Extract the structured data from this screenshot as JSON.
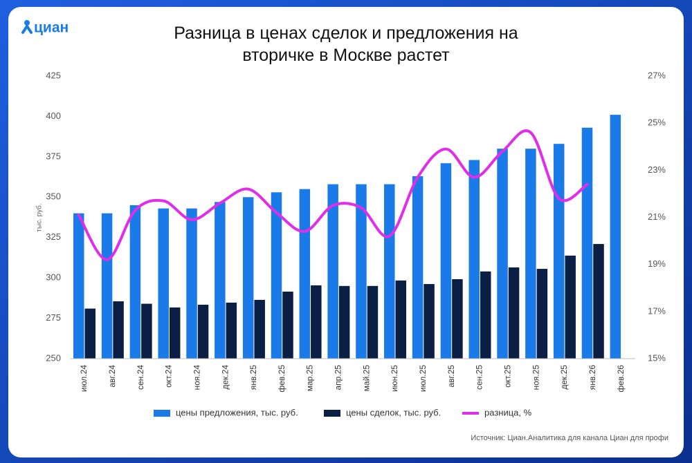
{
  "brand": "циан",
  "chart_data": {
    "type": "bar",
    "title": "Разница в ценах сделок и предложения на вторичке в Москве растет",
    "ylabel": "тыс. руб.",
    "source": "Источник: Циан.Аналитика для канала Циан для профи",
    "categories": [
      "июл.24",
      "авг.24",
      "сен.24",
      "окт.24",
      "ноя.24",
      "дек.24",
      "янв.25",
      "фев.25",
      "мар.25",
      "апр.25",
      "май.25",
      "июн.25",
      "июл.25",
      "авг.25",
      "сен.25",
      "окт.25",
      "ноя.25",
      "дек.25",
      "янв.26",
      "фев.26"
    ],
    "series": [
      {
        "name": "цены предложения, тыс. руб.",
        "color": "#1a7be8",
        "type": "bar",
        "values": [
          340,
          340,
          345,
          343,
          343,
          347,
          350,
          353,
          355,
          358,
          358,
          358,
          363,
          371,
          373,
          380,
          380,
          383,
          393,
          401
        ]
      },
      {
        "name": "цены сделок, тыс. руб.",
        "color": "#0b1f45",
        "type": "bar",
        "values": [
          281,
          285.5,
          284,
          281.7,
          283.4,
          284.7,
          286.4,
          291.5,
          295.4,
          295,
          295,
          298.4,
          296.2,
          299.2,
          304,
          306.5,
          305.6,
          313.8,
          321,
          null
        ]
      },
      {
        "name": "разница, %",
        "color": "#e02ee8",
        "type": "line",
        "axis": "y2",
        "values": [
          21.1,
          19.2,
          21.3,
          21.7,
          20.9,
          21.6,
          22.2,
          21.2,
          20.4,
          21.5,
          21.4,
          20.2,
          22.7,
          23.9,
          22.7,
          23.8,
          24.6,
          21.8,
          22.4,
          null
        ]
      }
    ],
    "ylim": [
      250,
      425
    ],
    "yticks": [
      250,
      275,
      300,
      325,
      350,
      375,
      400,
      425
    ],
    "y2lim": [
      15,
      27
    ],
    "y2ticks": [
      {
        "value": 15,
        "label": "15%"
      },
      {
        "value": 17,
        "label": "17%"
      },
      {
        "value": 19,
        "label": "19%"
      },
      {
        "value": 21,
        "label": "21%"
      },
      {
        "value": 23,
        "label": "23%"
      },
      {
        "value": 25,
        "label": "25%"
      },
      {
        "value": 27,
        "label": "27%"
      }
    ],
    "legend": "bottom"
  }
}
